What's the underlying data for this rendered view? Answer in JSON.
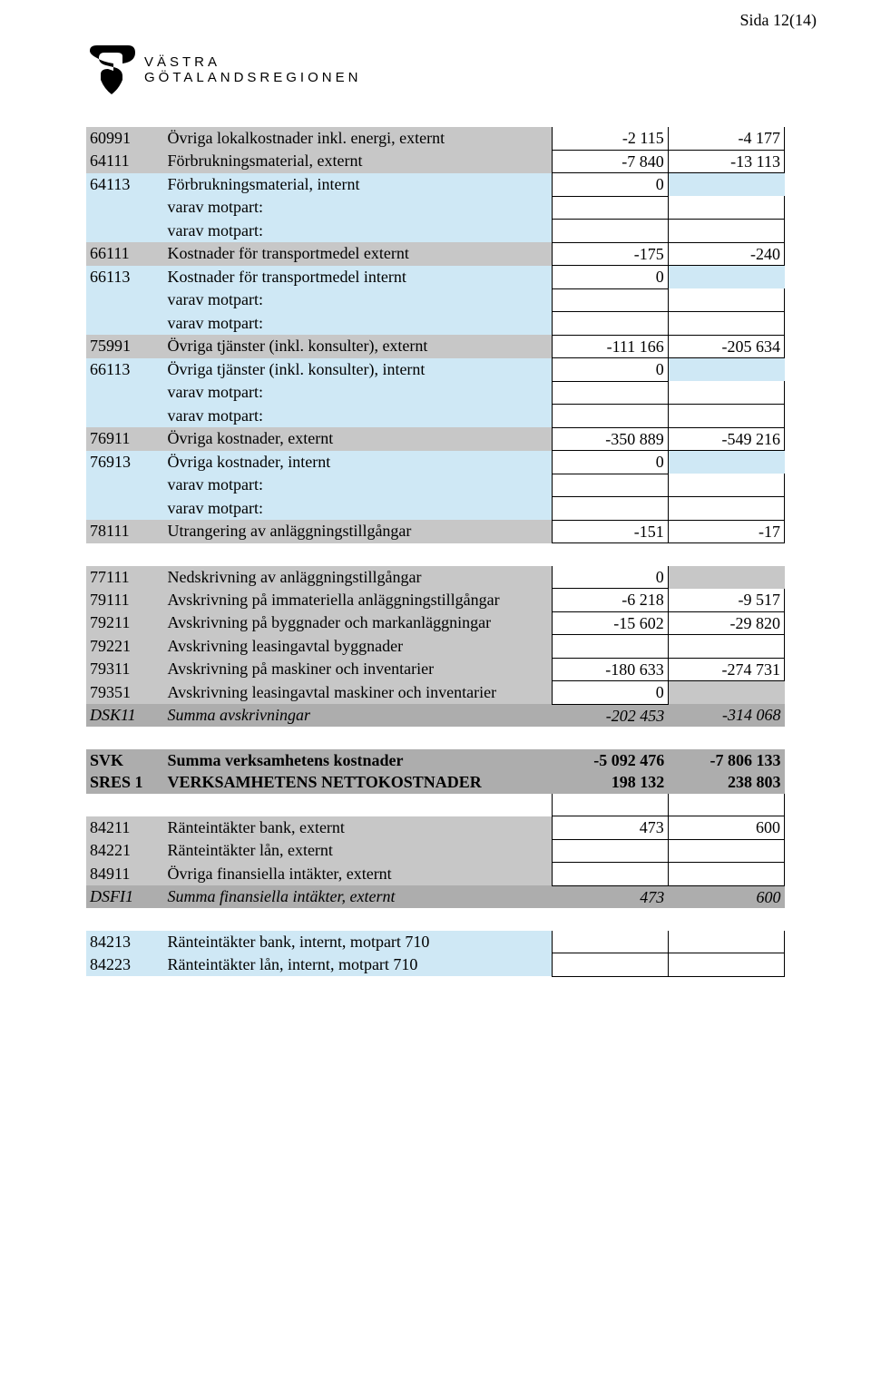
{
  "page_number": "Sida 12(14)",
  "logo": {
    "line1": "VÄSTRA",
    "line2": "GÖTALANDSREGIONEN"
  },
  "colors": {
    "grey": "#c7c7c7",
    "blue": "#cfe8f5",
    "dark_grey": "#adadad",
    "text": "#000000",
    "bg": "#ffffff"
  },
  "rows": [
    {
      "code": "60991",
      "label": "Övriga lokalkostnader inkl. energi, externt",
      "v1": "-2 115",
      "v2": "-4 177",
      "style": "grey",
      "box": "both"
    },
    {
      "code": "64111",
      "label": "Förbrukningsmaterial, externt",
      "v1": "-7 840",
      "v2": "-13 113",
      "style": "grey",
      "box": "both"
    },
    {
      "code": "64113",
      "label": "Förbrukningsmaterial, internt",
      "v1": "0",
      "v2": "",
      "style": "blue",
      "box": "v1"
    },
    {
      "code": "",
      "label": "varav motpart:",
      "v1": "",
      "v2": "",
      "style": "blue",
      "box": "both"
    },
    {
      "code": "",
      "label": "varav motpart:",
      "v1": "",
      "v2": "",
      "style": "blue",
      "box": "both"
    },
    {
      "code": "66111",
      "label": "Kostnader för transportmedel externt",
      "v1": "-175",
      "v2": "-240",
      "style": "grey",
      "box": "both"
    },
    {
      "code": "66113",
      "label": "Kostnader för transportmedel internt",
      "v1": "0",
      "v2": "",
      "style": "blue",
      "box": "v1"
    },
    {
      "code": "",
      "label": "varav motpart:",
      "v1": "",
      "v2": "",
      "style": "blue",
      "box": "both"
    },
    {
      "code": "",
      "label": "varav motpart:",
      "v1": "",
      "v2": "",
      "style": "blue",
      "box": "both"
    },
    {
      "code": "75991",
      "label": "Övriga tjänster (inkl. konsulter), externt",
      "v1": "-111 166",
      "v2": "-205 634",
      "style": "grey",
      "box": "both"
    },
    {
      "code": "66113",
      "label": "Övriga tjänster (inkl. konsulter), internt",
      "v1": "0",
      "v2": "",
      "style": "blue",
      "box": "v1"
    },
    {
      "code": "",
      "label": "varav motpart:",
      "v1": "",
      "v2": "",
      "style": "blue",
      "box": "both"
    },
    {
      "code": "",
      "label": "varav motpart:",
      "v1": "",
      "v2": "",
      "style": "blue",
      "box": "both"
    },
    {
      "code": "76911",
      "label": "Övriga kostnader, externt",
      "v1": "-350 889",
      "v2": "-549 216",
      "style": "grey",
      "box": "both"
    },
    {
      "code": "76913",
      "label": "Övriga kostnader, internt",
      "v1": "0",
      "v2": "",
      "style": "blue",
      "box": "v1"
    },
    {
      "code": "",
      "label": "varav motpart:",
      "v1": "",
      "v2": "",
      "style": "blue",
      "box": "both"
    },
    {
      "code": "",
      "label": "varav motpart:",
      "v1": "",
      "v2": "",
      "style": "blue",
      "box": "both"
    },
    {
      "code": "78111",
      "label": "Utrangering av anläggningstillgångar",
      "v1": "-151",
      "v2": "-17",
      "style": "grey",
      "box": "both"
    },
    {
      "spacer": true
    },
    {
      "code": "77111",
      "label": "Nedskrivning av anläggningstillgångar",
      "v1": "0",
      "v2": "",
      "style": "grey",
      "box": "v1"
    },
    {
      "code": "79111",
      "label": "Avskrivning på immateriella anläggningstillgångar",
      "v1": "-6 218",
      "v2": "-9 517",
      "style": "grey",
      "box": "both"
    },
    {
      "code": "79211",
      "label": "Avskrivning på byggnader och markanläggningar",
      "v1": "-15 602",
      "v2": "-29 820",
      "style": "grey",
      "box": "both"
    },
    {
      "code": "79221",
      "label": "Avskrivning leasingavtal byggnader",
      "v1": "",
      "v2": "",
      "style": "grey",
      "box": "both"
    },
    {
      "code": "79311",
      "label": "Avskrivning på maskiner och inventarier",
      "v1": "-180 633",
      "v2": "-274 731",
      "style": "grey",
      "box": "both"
    },
    {
      "code": "79351",
      "label": "Avskrivning leasingavtal maskiner och inventarier",
      "v1": "0",
      "v2": "",
      "style": "grey",
      "box": "v1"
    },
    {
      "code": "DSK11",
      "label": "Summa avskrivningar",
      "v1": "-202 453",
      "v2": "-314 068",
      "style": "dgrey",
      "box": "none",
      "italic": true
    },
    {
      "spacer": true
    },
    {
      "code": "SVK",
      "label": "Summa verksamhetens kostnader",
      "v1": "-5 092 476",
      "v2": "-7 806 133",
      "style": "dgrey",
      "box": "none",
      "bold": true
    },
    {
      "code": "SRES 1",
      "label": "VERKSAMHETENS NETTOKOSTNADER",
      "v1": "198 132",
      "v2": "238 803",
      "style": "dgrey",
      "box": "none",
      "bold": true
    },
    {
      "spacer": true,
      "box": "both"
    },
    {
      "code": "84211",
      "label": "Ränteintäkter bank, externt",
      "v1": "473",
      "v2": "600",
      "style": "grey",
      "box": "both"
    },
    {
      "code": "84221",
      "label": "Ränteintäkter lån, externt",
      "v1": "",
      "v2": "",
      "style": "grey",
      "box": "both"
    },
    {
      "code": "84911",
      "label": "Övriga finansiella intäkter, externt",
      "v1": "",
      "v2": "",
      "style": "grey",
      "box": "both"
    },
    {
      "code": "DSFI1",
      "label": "Summa finansiella intäkter, externt",
      "v1": "473",
      "v2": "600",
      "style": "dgrey",
      "box": "none",
      "italic": true
    },
    {
      "spacer": true
    },
    {
      "code": "84213",
      "label": "Ränteintäkter bank, internt, motpart 710",
      "v1": "",
      "v2": "",
      "style": "blue",
      "box": "both"
    },
    {
      "code": "84223",
      "label": "Ränteintäkter lån, internt, motpart 710",
      "v1": "",
      "v2": "",
      "style": "blue",
      "box": "both"
    }
  ]
}
